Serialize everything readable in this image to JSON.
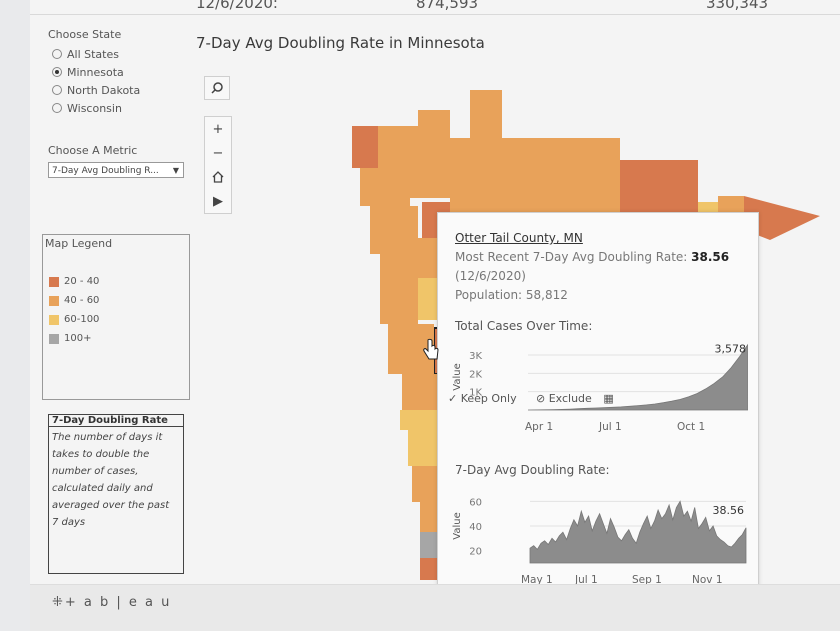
{
  "top_stats": {
    "date": "12/6/2020:",
    "value1": "874,593",
    "value2": "330,343"
  },
  "sidebar": {
    "choose_state_label": "Choose State",
    "states": [
      {
        "label": "All States",
        "selected": false
      },
      {
        "label": "Minnesota",
        "selected": true
      },
      {
        "label": "North Dakota",
        "selected": false
      },
      {
        "label": "Wisconsin",
        "selected": false
      }
    ],
    "choose_metric_label": "Choose A Metric",
    "metric_value": "7-Day Avg Doubling R...",
    "legend": {
      "title": "Map Legend",
      "items": [
        {
          "label": "20 - 40",
          "color": "#d7794e"
        },
        {
          "label": "40 - 60",
          "color": "#e8a25a"
        },
        {
          "label": "60-100",
          "color": "#f0c569"
        },
        {
          "label": "100+",
          "color": "#a6a6a6"
        }
      ]
    },
    "description": {
      "title": "7-Day Doubling Rate",
      "lines": [
        "The number of days it",
        "takes to double the",
        "number of cases,",
        "calculated daily and",
        "averaged over the past",
        "7 days"
      ]
    }
  },
  "title": "7-Day Avg Doubling Rate in Minnesota",
  "toolbar": {
    "icons": [
      "search-icon",
      "zoom-in-icon",
      "zoom-out-icon",
      "home-icon",
      "play-icon"
    ]
  },
  "tooltip": {
    "county": "Otter Tail County, MN",
    "rate_label": "Most Recent 7-Day Avg Doubling Rate:",
    "rate_value": "38.56",
    "date": "(12/6/2020)",
    "population": "Population: 58,812",
    "cases_title": "Total Cases Over Time:",
    "doubling_title": "7-Day Avg Doubling Rate:",
    "actions": {
      "keep_only": "Keep Only",
      "exclude": "Exclude"
    }
  },
  "footer": {
    "brand": "+ a b | e a u"
  },
  "chart_data": [
    {
      "type": "area",
      "title": "Total Cases Over Time:",
      "ylabel": "Value",
      "yticks": [
        "1K",
        "2K",
        "3K"
      ],
      "xticks": [
        "Apr 1",
        "Jul 1",
        "Oct 1"
      ],
      "ylim": [
        0,
        3600
      ],
      "x": [
        0,
        10,
        20,
        30,
        40,
        50,
        60,
        70,
        80,
        90,
        100,
        110,
        120,
        130,
        140,
        150,
        160,
        170,
        180,
        190,
        200,
        210,
        220,
        230,
        240,
        250,
        255,
        260
      ],
      "values": [
        2,
        5,
        10,
        20,
        35,
        50,
        70,
        90,
        110,
        130,
        150,
        170,
        200,
        240,
        280,
        330,
        400,
        480,
        580,
        720,
        900,
        1150,
        1450,
        1800,
        2300,
        2900,
        3250,
        3578
      ],
      "end_label": "3,578"
    },
    {
      "type": "area",
      "title": "7-Day Avg Doubling Rate:",
      "ylabel": "Value",
      "yticks": [
        "20",
        "40",
        "60"
      ],
      "xticks": [
        "May 1",
        "Jul 1",
        "Sep 1",
        "Nov 1"
      ],
      "ylim": [
        10,
        70
      ],
      "values": [
        22,
        24,
        21,
        26,
        28,
        25,
        30,
        27,
        32,
        35,
        29,
        38,
        45,
        40,
        52,
        43,
        48,
        36,
        44,
        50,
        42,
        34,
        46,
        39,
        31,
        28,
        33,
        37,
        30,
        26,
        35,
        42,
        48,
        38,
        44,
        53,
        46,
        50,
        57,
        45,
        55,
        60,
        48,
        52,
        44,
        55,
        38,
        42,
        47,
        36,
        40,
        32,
        29,
        27,
        24,
        23,
        26,
        30,
        33,
        38.56
      ],
      "end_label": "38.56"
    }
  ]
}
